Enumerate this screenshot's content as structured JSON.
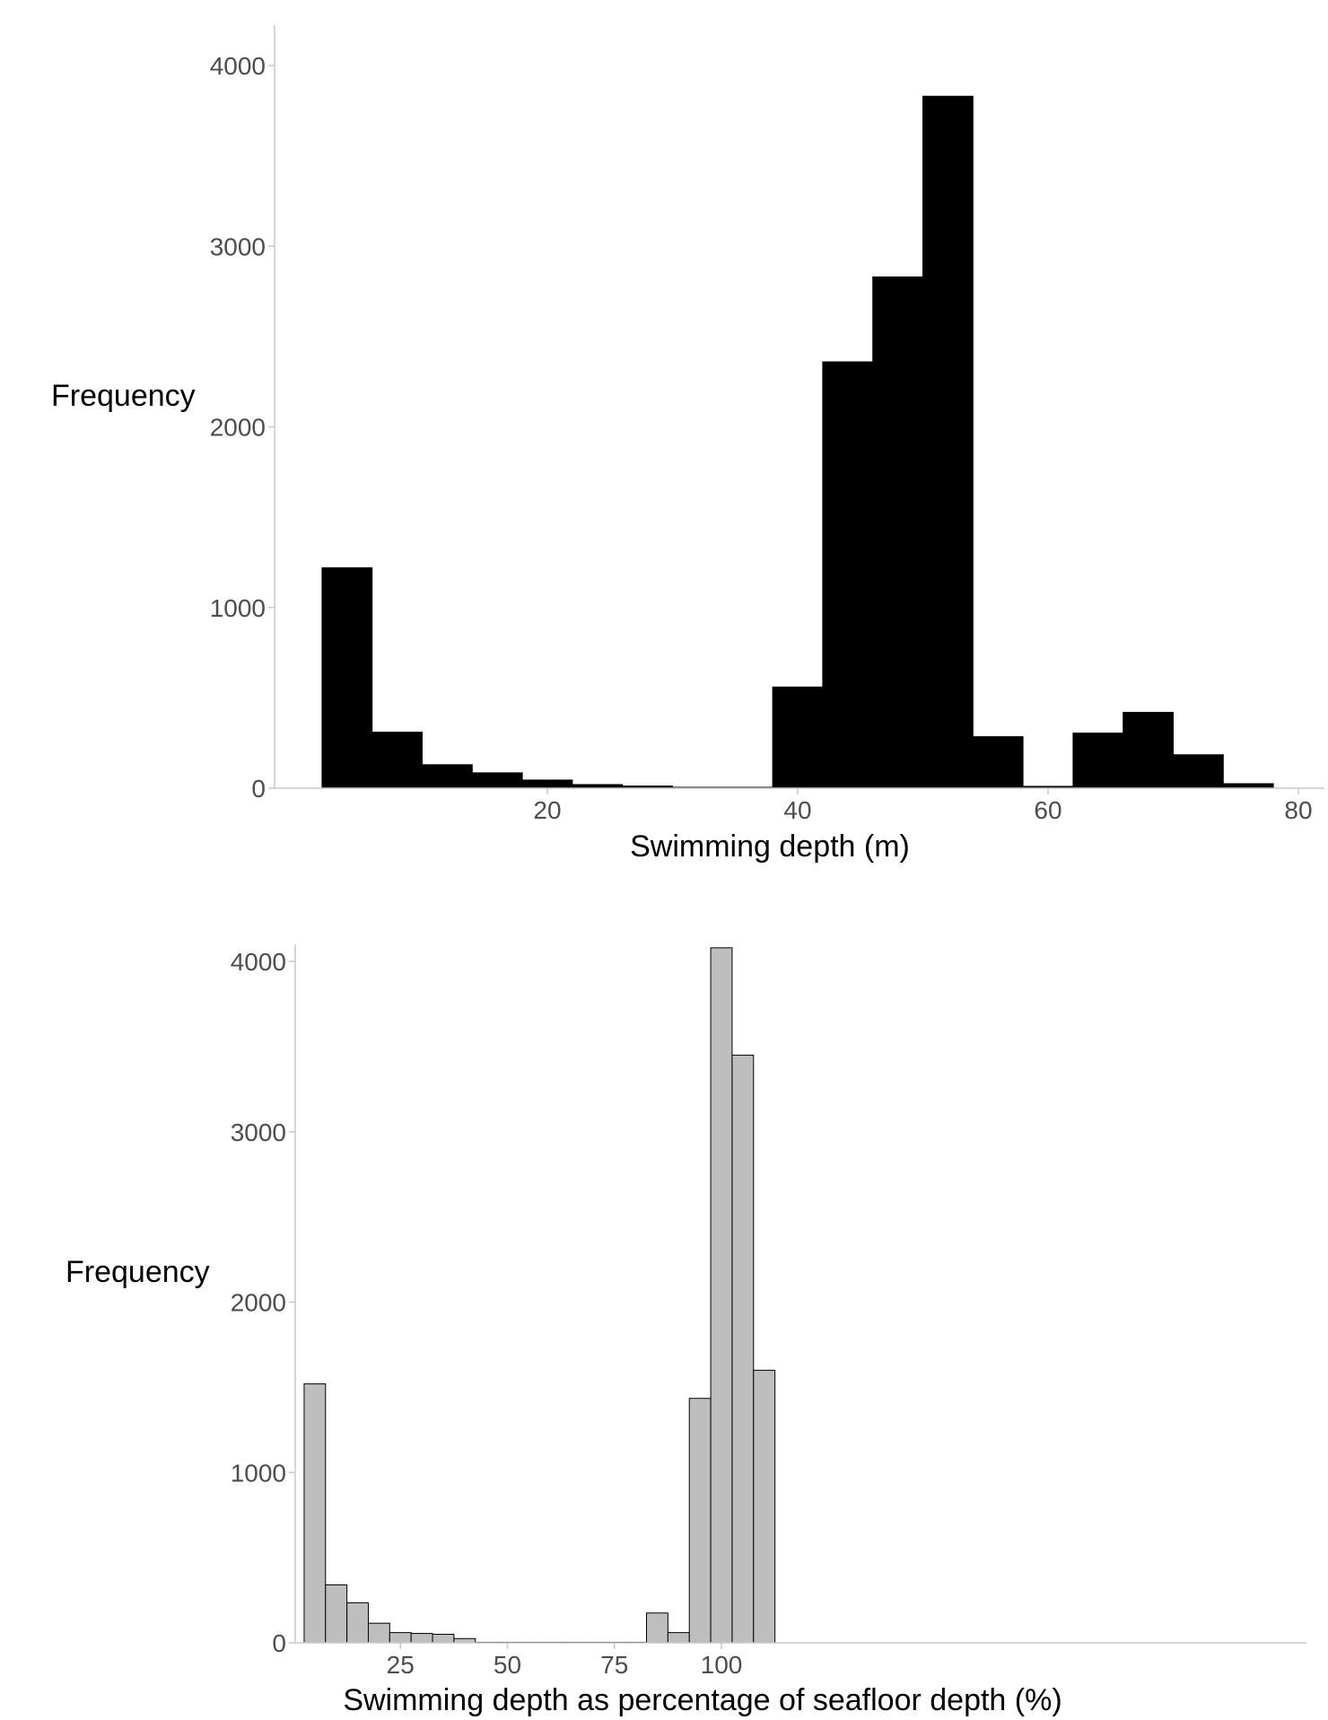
{
  "chart_data": [
    {
      "type": "bar",
      "subtype": "histogram",
      "title": "",
      "xlabel": "Swimming depth (m)",
      "ylabel": "Frequency",
      "xlim": [
        0,
        82
      ],
      "ylim": [
        0,
        4200
      ],
      "xticks": [
        20,
        40,
        60,
        80
      ],
      "yticks": [
        0,
        1000,
        2000,
        3000,
        4000
      ],
      "grid": false,
      "bin_width": 4,
      "bins": [
        {
          "x0": 2,
          "x1": 6,
          "value": 1220
        },
        {
          "x0": 6,
          "x1": 10,
          "value": 310
        },
        {
          "x0": 10,
          "x1": 14,
          "value": 130
        },
        {
          "x0": 14,
          "x1": 18,
          "value": 85
        },
        {
          "x0": 18,
          "x1": 22,
          "value": 45
        },
        {
          "x0": 22,
          "x1": 26,
          "value": 20
        },
        {
          "x0": 26,
          "x1": 30,
          "value": 12
        },
        {
          "x0": 30,
          "x1": 34,
          "value": 5
        },
        {
          "x0": 34,
          "x1": 38,
          "value": 5
        },
        {
          "x0": 38,
          "x1": 42,
          "value": 560
        },
        {
          "x0": 42,
          "x1": 46,
          "value": 2360
        },
        {
          "x0": 46,
          "x1": 50,
          "value": 2830
        },
        {
          "x0": 50,
          "x1": 54,
          "value": 3830
        },
        {
          "x0": 54,
          "x1": 58,
          "value": 285
        },
        {
          "x0": 58,
          "x1": 62,
          "value": 10
        },
        {
          "x0": 62,
          "x1": 66,
          "value": 305
        },
        {
          "x0": 66,
          "x1": 70,
          "value": 420
        },
        {
          "x0": 70,
          "x1": 74,
          "value": 185
        },
        {
          "x0": 74,
          "x1": 78,
          "value": 25
        }
      ],
      "bar_fill": "#000000",
      "bar_stroke": "#000000"
    },
    {
      "type": "bar",
      "subtype": "histogram",
      "title": "",
      "xlabel": "Swimming depth as percentage of seafloor depth (%)",
      "ylabel": "Frequency",
      "xlim": [
        2,
        119
      ],
      "ylim": [
        0,
        4200
      ],
      "xticks": [
        25,
        50,
        75,
        100
      ],
      "yticks": [
        0,
        1000,
        2000,
        3000,
        4000
      ],
      "grid": false,
      "bin_width": 5,
      "bins": [
        {
          "x0": 2.5,
          "x1": 7.5,
          "value": 1520
        },
        {
          "x0": 7.5,
          "x1": 12.5,
          "value": 340
        },
        {
          "x0": 12.5,
          "x1": 17.5,
          "value": 235
        },
        {
          "x0": 17.5,
          "x1": 22.5,
          "value": 115
        },
        {
          "x0": 22.5,
          "x1": 27.5,
          "value": 60
        },
        {
          "x0": 27.5,
          "x1": 32.5,
          "value": 55
        },
        {
          "x0": 32.5,
          "x1": 37.5,
          "value": 50
        },
        {
          "x0": 37.5,
          "x1": 42.5,
          "value": 25
        },
        {
          "x0": 42.5,
          "x1": 47.5,
          "value": 3
        },
        {
          "x0": 47.5,
          "x1": 52.5,
          "value": 3
        },
        {
          "x0": 52.5,
          "x1": 57.5,
          "value": 3
        },
        {
          "x0": 57.5,
          "x1": 62.5,
          "value": 3
        },
        {
          "x0": 62.5,
          "x1": 67.5,
          "value": 3
        },
        {
          "x0": 67.5,
          "x1": 72.5,
          "value": 3
        },
        {
          "x0": 72.5,
          "x1": 77.5,
          "value": 3
        },
        {
          "x0": 77.5,
          "x1": 82.5,
          "value": 3
        },
        {
          "x0": 82.5,
          "x1": 87.5,
          "value": 175
        },
        {
          "x0": 87.5,
          "x1": 92.5,
          "value": 60
        },
        {
          "x0": 92.5,
          "x1": 97.5,
          "value": 1435
        },
        {
          "x0": 97.5,
          "x1": 102.5,
          "value": 4080
        },
        {
          "x0": 102.5,
          "x1": 107.5,
          "value": 3450
        },
        {
          "x0": 107.5,
          "x1": 112.5,
          "value": 1600
        }
      ],
      "bar_fill": "#bebebe",
      "bar_stroke": "#000000"
    }
  ]
}
